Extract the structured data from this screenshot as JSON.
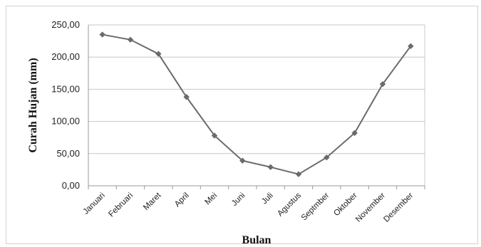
{
  "chart_data": {
    "type": "line",
    "title": "",
    "xlabel": "Bulan",
    "ylabel": "Curah Hujan (mm)",
    "categories": [
      "Januari",
      "Februari",
      "Maret",
      "April",
      "Mei",
      "Juni",
      "Juli",
      "Agustus",
      "Septmber",
      "Oktober",
      "November",
      "Desember"
    ],
    "series": [
      {
        "values": [
          235,
          227,
          205,
          138,
          78,
          39,
          29,
          18,
          44,
          82,
          158,
          217
        ],
        "color": "#6b6b6b"
      }
    ],
    "ylim": [
      0,
      250
    ],
    "yticks": [
      0,
      50,
      100,
      150,
      200,
      250
    ],
    "ytick_labels": [
      "0,00",
      "50,00",
      "100,00",
      "150,00",
      "200,00",
      "250,00"
    ],
    "grid": true,
    "legend": "none",
    "marker": "diamond"
  }
}
